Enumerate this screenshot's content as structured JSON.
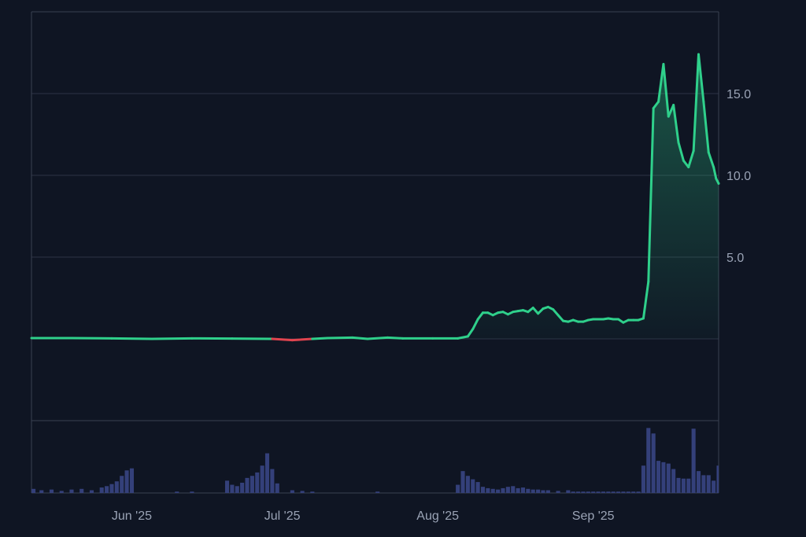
{
  "theme": {
    "background": "#0f1523",
    "grid": "#2c3344",
    "frame": "#3a4152",
    "up_color": "#2fd08b",
    "down_color": "#e0444f",
    "volume_color": "#34407a",
    "label_color": "#9aa3b5"
  },
  "chart_data": [
    {
      "type": "area",
      "title": "",
      "xlabel": "",
      "ylabel": "",
      "grid": true,
      "legend": "none",
      "y_axis_side": "right",
      "ylim": [
        -5,
        20
      ],
      "yticks": [
        5.0,
        10.0,
        15.0
      ],
      "ytick_labels": [
        "5.0",
        "10.0",
        "15.0"
      ],
      "xlim": [
        "2025-05-12",
        "2025-09-26"
      ],
      "xticks": [
        {
          "date": "2025-06-01",
          "label": "Jun '25"
        },
        {
          "date": "2025-07-01",
          "label": "Jul '25"
        },
        {
          "date": "2025-08-01",
          "label": "Aug '25"
        },
        {
          "date": "2025-09-01",
          "label": "Sep '25"
        }
      ],
      "baseline": 0.0,
      "series": [
        {
          "points": [
            [
              "2025-05-12",
              0.05
            ],
            [
              "2025-05-20",
              0.05
            ],
            [
              "2025-05-28",
              0.03
            ],
            [
              "2025-06-05",
              0.0
            ],
            [
              "2025-06-13",
              0.03
            ],
            [
              "2025-06-21",
              0.02
            ],
            [
              "2025-06-29",
              0.0
            ],
            [
              "2025-07-03",
              -0.08
            ],
            [
              "2025-07-07",
              0.0
            ],
            [
              "2025-07-10",
              0.05
            ],
            [
              "2025-07-15",
              0.08
            ],
            [
              "2025-07-18",
              0.0
            ],
            [
              "2025-07-22",
              0.08
            ],
            [
              "2025-07-25",
              0.03
            ],
            [
              "2025-07-31",
              0.03
            ],
            [
              "2025-08-05",
              0.03
            ],
            [
              "2025-08-07",
              0.15
            ],
            [
              "2025-08-08",
              0.6
            ],
            [
              "2025-08-09",
              1.2
            ],
            [
              "2025-08-10",
              1.6
            ],
            [
              "2025-08-11",
              1.6
            ],
            [
              "2025-08-12",
              1.45
            ],
            [
              "2025-08-13",
              1.6
            ],
            [
              "2025-08-14",
              1.65
            ],
            [
              "2025-08-15",
              1.5
            ],
            [
              "2025-08-16",
              1.65
            ],
            [
              "2025-08-17",
              1.7
            ],
            [
              "2025-08-18",
              1.75
            ],
            [
              "2025-08-19",
              1.65
            ],
            [
              "2025-08-20",
              1.9
            ],
            [
              "2025-08-21",
              1.55
            ],
            [
              "2025-08-22",
              1.85
            ],
            [
              "2025-08-23",
              1.95
            ],
            [
              "2025-08-24",
              1.8
            ],
            [
              "2025-08-25",
              1.45
            ],
            [
              "2025-08-26",
              1.1
            ],
            [
              "2025-08-27",
              1.05
            ],
            [
              "2025-08-28",
              1.15
            ],
            [
              "2025-08-29",
              1.05
            ],
            [
              "2025-08-30",
              1.05
            ],
            [
              "2025-08-31",
              1.15
            ],
            [
              "2025-09-01",
              1.2
            ],
            [
              "2025-09-03",
              1.2
            ],
            [
              "2025-09-04",
              1.25
            ],
            [
              "2025-09-05",
              1.2
            ],
            [
              "2025-09-06",
              1.2
            ],
            [
              "2025-09-07",
              1.0
            ],
            [
              "2025-09-08",
              1.15
            ],
            [
              "2025-09-09",
              1.15
            ],
            [
              "2025-09-10",
              1.15
            ],
            [
              "2025-09-11",
              1.25
            ],
            [
              "2025-09-12",
              3.5
            ],
            [
              "2025-09-13",
              14.1
            ],
            [
              "2025-09-14",
              14.5
            ],
            [
              "2025-09-15",
              16.8
            ],
            [
              "2025-09-16",
              13.6
            ],
            [
              "2025-09-17",
              14.3
            ],
            [
              "2025-09-18",
              12.0
            ],
            [
              "2025-09-19",
              10.9
            ],
            [
              "2025-09-20",
              10.5
            ],
            [
              "2025-09-21",
              11.5
            ],
            [
              "2025-09-22",
              17.4
            ],
            [
              "2025-09-23",
              14.5
            ],
            [
              "2025-09-24",
              11.4
            ],
            [
              "2025-09-25",
              10.5
            ],
            [
              "2025-09-25T12",
              9.8
            ],
            [
              "2025-09-26",
              9.5
            ],
            [
              "2025-09-26",
              9.5
            ]
          ]
        }
      ]
    },
    {
      "type": "bar",
      "title": "",
      "values_note": "",
      "bars": [
        [
          "2025-05-12",
          0.06
        ],
        [
          "2025-05-14",
          0.04
        ],
        [
          "2025-05-16",
          0.05
        ],
        [
          "2025-05-18",
          0.03
        ],
        [
          "2025-05-20",
          0.05
        ],
        [
          "2025-05-22",
          0.06
        ],
        [
          "2025-05-24",
          0.04
        ],
        [
          "2025-05-26",
          0.08
        ],
        [
          "2025-05-27",
          0.1
        ],
        [
          "2025-05-28",
          0.13
        ],
        [
          "2025-05-29",
          0.17
        ],
        [
          "2025-05-30",
          0.25
        ],
        [
          "2025-05-31",
          0.33
        ],
        [
          "2025-06-01",
          0.36
        ],
        [
          "2025-06-10",
          0.02
        ],
        [
          "2025-06-13",
          0.02
        ],
        [
          "2025-06-20",
          0.18
        ],
        [
          "2025-06-21",
          0.12
        ],
        [
          "2025-06-22",
          0.1
        ],
        [
          "2025-06-23",
          0.15
        ],
        [
          "2025-06-24",
          0.22
        ],
        [
          "2025-06-25",
          0.25
        ],
        [
          "2025-06-26",
          0.3
        ],
        [
          "2025-06-27",
          0.4
        ],
        [
          "2025-06-28",
          0.58
        ],
        [
          "2025-06-29",
          0.35
        ],
        [
          "2025-06-30",
          0.14
        ],
        [
          "2025-07-03",
          0.04
        ],
        [
          "2025-07-05",
          0.03
        ],
        [
          "2025-07-07",
          0.02
        ],
        [
          "2025-07-20",
          0.02
        ],
        [
          "2025-08-05",
          0.12
        ],
        [
          "2025-08-06",
          0.32
        ],
        [
          "2025-08-07",
          0.25
        ],
        [
          "2025-08-08",
          0.2
        ],
        [
          "2025-08-09",
          0.16
        ],
        [
          "2025-08-10",
          0.09
        ],
        [
          "2025-08-11",
          0.07
        ],
        [
          "2025-08-12",
          0.06
        ],
        [
          "2025-08-13",
          0.05
        ],
        [
          "2025-08-14",
          0.07
        ],
        [
          "2025-08-15",
          0.09
        ],
        [
          "2025-08-16",
          0.1
        ],
        [
          "2025-08-17",
          0.07
        ],
        [
          "2025-08-18",
          0.08
        ],
        [
          "2025-08-19",
          0.06
        ],
        [
          "2025-08-20",
          0.05
        ],
        [
          "2025-08-21",
          0.05
        ],
        [
          "2025-08-22",
          0.04
        ],
        [
          "2025-08-23",
          0.04
        ],
        [
          "2025-08-25",
          0.03
        ],
        [
          "2025-08-27",
          0.04
        ],
        [
          "2025-08-28",
          0.02
        ],
        [
          "2025-08-29",
          0.02
        ],
        [
          "2025-08-30",
          0.02
        ],
        [
          "2025-08-31",
          0.02
        ],
        [
          "2025-09-01",
          0.02
        ],
        [
          "2025-09-02",
          0.02
        ],
        [
          "2025-09-03",
          0.02
        ],
        [
          "2025-09-04",
          0.02
        ],
        [
          "2025-09-05",
          0.02
        ],
        [
          "2025-09-06",
          0.02
        ],
        [
          "2025-09-07",
          0.02
        ],
        [
          "2025-09-08",
          0.02
        ],
        [
          "2025-09-09",
          0.02
        ],
        [
          "2025-09-10",
          0.02
        ],
        [
          "2025-09-11",
          0.4
        ],
        [
          "2025-09-12",
          0.95
        ],
        [
          "2025-09-13",
          0.87
        ],
        [
          "2025-09-14",
          0.47
        ],
        [
          "2025-09-15",
          0.45
        ],
        [
          "2025-09-16",
          0.43
        ],
        [
          "2025-09-17",
          0.35
        ],
        [
          "2025-09-18",
          0.22
        ],
        [
          "2025-09-19",
          0.21
        ],
        [
          "2025-09-20",
          0.21
        ],
        [
          "2025-09-21",
          0.94
        ],
        [
          "2025-09-22",
          0.32
        ],
        [
          "2025-09-23",
          0.26
        ],
        [
          "2025-09-24",
          0.26
        ],
        [
          "2025-09-25",
          0.18
        ],
        [
          "2025-09-26",
          0.12
        ],
        [
          "2025-09-26",
          0.4
        ]
      ]
    }
  ]
}
